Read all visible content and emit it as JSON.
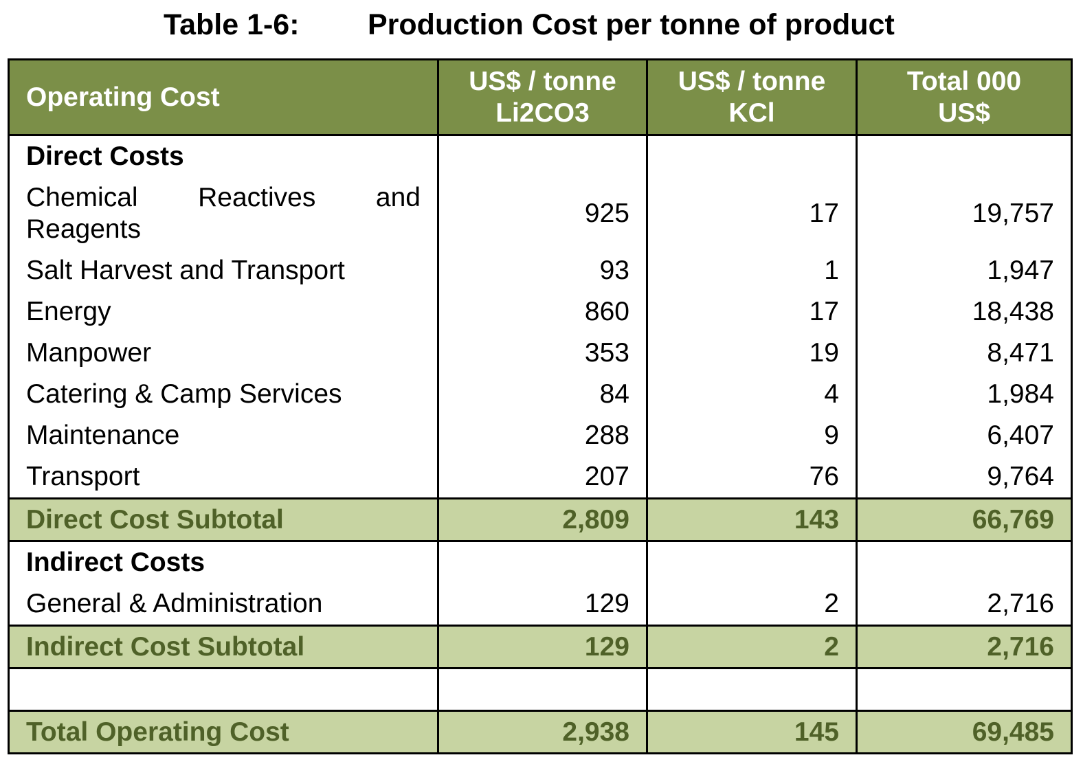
{
  "caption": {
    "label": "Table 1-6:",
    "title": "Production Cost per tonne of product"
  },
  "header": {
    "col0": "Operating Cost",
    "col1_line1": "US$ / tonne",
    "col1_line2": "Li2CO3",
    "col2_line1": "US$ / tonne",
    "col2_line2": "KCl",
    "col3_line1": "Total 000",
    "col3_line2": "US$"
  },
  "colors": {
    "header_bg": "#7b8f48",
    "subtotal_bg": "#c7d4a2",
    "subtotal_text": "#4f6128"
  },
  "sections": {
    "direct": "Direct Costs",
    "indirect": "Indirect Costs"
  },
  "rows": [
    {
      "label": "Chemical Reactives and Reagents",
      "li2co3": "925",
      "kcl": "17",
      "total": "19,757"
    },
    {
      "label": "Salt Harvest and Transport",
      "li2co3": "93",
      "kcl": "1",
      "total": "1,947"
    },
    {
      "label": "Energy",
      "li2co3": "860",
      "kcl": "17",
      "total": "18,438"
    },
    {
      "label": "Manpower",
      "li2co3": "353",
      "kcl": "19",
      "total": "8,471"
    },
    {
      "label": "Catering & Camp Services",
      "li2co3": "84",
      "kcl": "4",
      "total": "1,984"
    },
    {
      "label": "Maintenance",
      "li2co3": "288",
      "kcl": "9",
      "total": "6,407"
    },
    {
      "label": "Transport",
      "li2co3": "207",
      "kcl": "76",
      "total": "9,764"
    },
    {
      "label": "Direct Cost Subtotal",
      "li2co3": "2,809",
      "kcl": "143",
      "total": "66,769"
    },
    {
      "label": "General & Administration",
      "li2co3": "129",
      "kcl": "2",
      "total": "2,716"
    },
    {
      "label": "Indirect Cost Subtotal",
      "li2co3": "129",
      "kcl": "2",
      "total": "2,716"
    },
    {
      "label": "Total Operating Cost",
      "li2co3": "2,938",
      "kcl": "145",
      "total": "69,485"
    }
  ]
}
